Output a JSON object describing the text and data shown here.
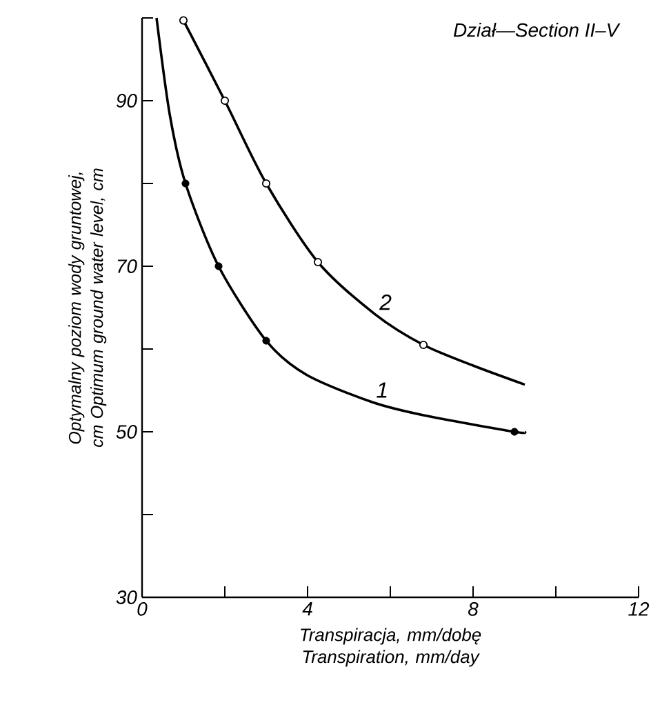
{
  "chart_data": {
    "type": "line",
    "title": "Dział—Section II–V",
    "xlabel": "Transpiracja, mm/dobę Transpiration, mm/day",
    "ylabel": "Optymalny poziom wody gruntowej, cm Optimum ground water level, cm",
    "xlim": [
      0,
      12
    ],
    "ylim": [
      30,
      100
    ],
    "xticks": [
      0,
      {
        "value": 2,
        "label": null
      },
      4,
      {
        "value": 6,
        "label": null
      },
      8,
      {
        "value": 10,
        "label": null
      },
      12
    ],
    "yticks": [
      30,
      {
        "value": 40,
        "label": null
      },
      50,
      {
        "value": 60,
        "label": null
      },
      70,
      {
        "value": 80,
        "label": null
      },
      90,
      {
        "value": 100,
        "label": null
      }
    ],
    "grid": false,
    "series": [
      {
        "name": "1",
        "color": "#000000",
        "marker": "none",
        "x": [
          0.35,
          0.67,
          1.05,
          1.85,
          3.0,
          3.97,
          5.55,
          6.8,
          9.0,
          9.25
        ],
        "values": [
          100,
          88.3,
          80,
          70,
          61,
          56.9,
          53.6,
          52,
          50,
          50
        ]
      },
      {
        "name": "2",
        "color": "#000000",
        "marker": "none",
        "x": [
          1.0,
          2.0,
          3.0,
          4.25,
          5.63,
          6.8,
          8.0,
          9.25
        ],
        "values": [
          99.7,
          90,
          80,
          70.5,
          64.2,
          60.5,
          58,
          55.7
        ]
      },
      {
        "type": "scatter",
        "color": "#000000",
        "marker": "circle",
        "x": [
          1.05,
          1.85,
          3.0,
          9.0
        ],
        "values": [
          80,
          70,
          61,
          50
        ]
      },
      {
        "type": "scatter",
        "color": "#000000",
        "marker": "open circle",
        "x": [
          1.0,
          2.0,
          3.0,
          4.25,
          6.8
        ],
        "values": [
          99.7,
          90,
          80,
          70.5,
          60.5
        ]
      }
    ]
  }
}
